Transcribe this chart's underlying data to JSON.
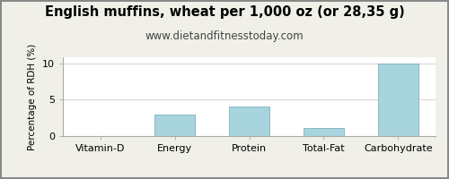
{
  "title": "English muffins, wheat per 1,000 oz (or 28,35 g)",
  "subtitle": "www.dietandfitnesstoday.com",
  "categories": [
    "Vitamin-D",
    "Energy",
    "Protein",
    "Total-Fat",
    "Carbohydrate"
  ],
  "values": [
    0,
    3.0,
    4.0,
    1.1,
    10.0
  ],
  "bar_color": "#a8d4de",
  "bar_edge_color": "#88b8c8",
  "ylabel": "Percentage of RDH (%)",
  "ylim": [
    0,
    10.8
  ],
  "yticks": [
    0,
    5,
    10
  ],
  "background_color": "#f0f0e8",
  "plot_bg_color": "#ffffff",
  "title_fontsize": 10.5,
  "subtitle_fontsize": 8.5,
  "label_fontsize": 7.5,
  "tick_fontsize": 8,
  "grid_color": "#cccccc",
  "border_color": "#888888",
  "font_family": "DejaVu Sans"
}
